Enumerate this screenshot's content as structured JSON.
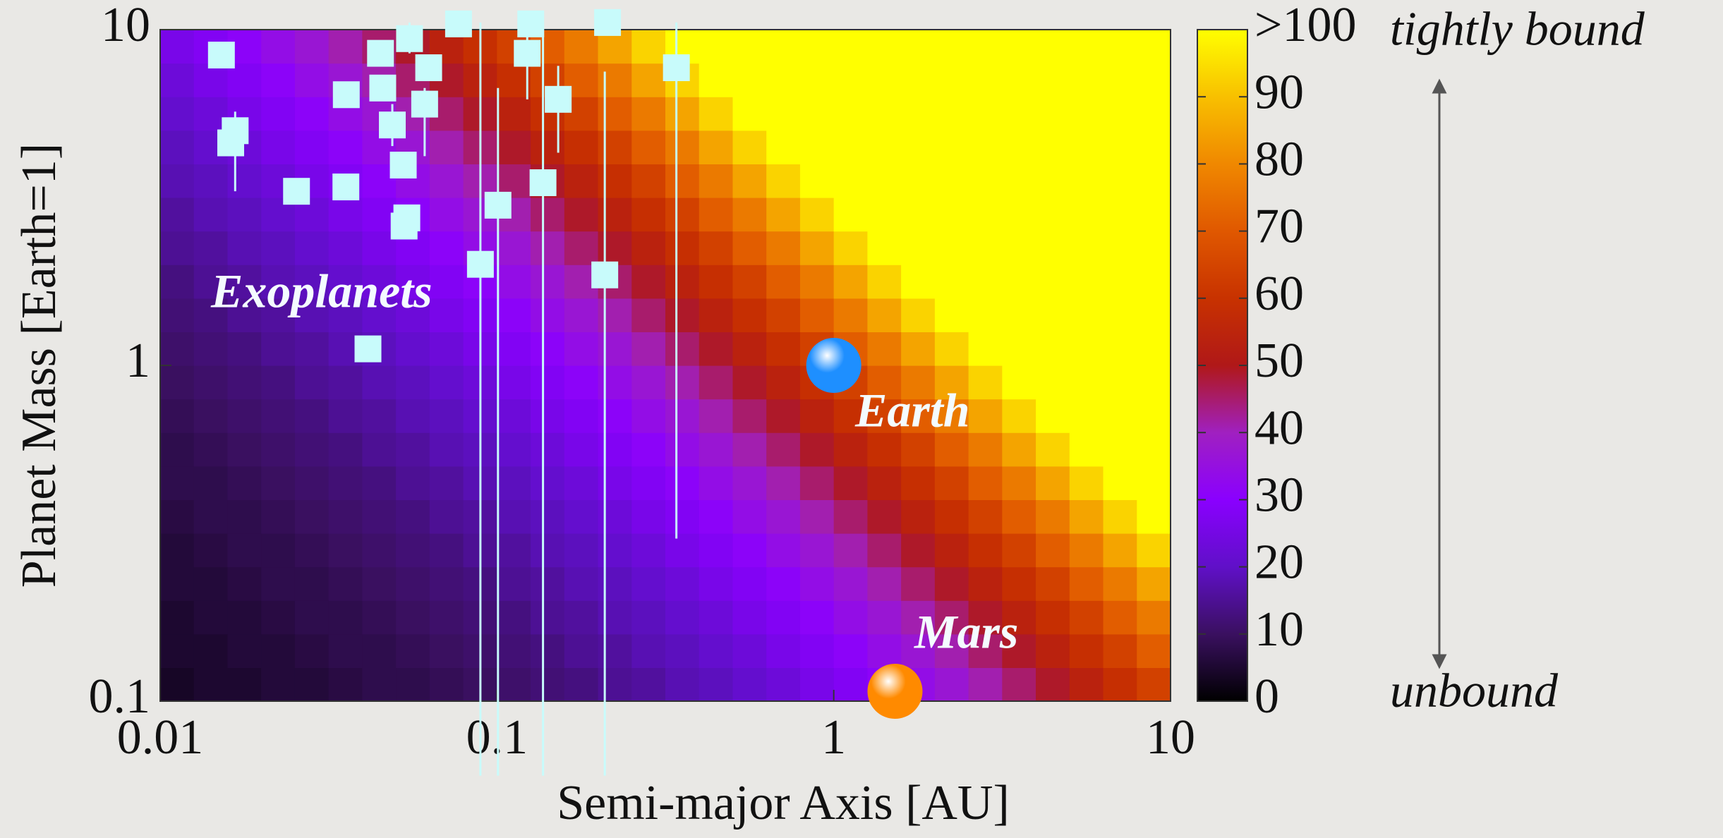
{
  "chart_data": {
    "type": "heatmap",
    "xlabel": "Semi-major Axis [AU]",
    "ylabel": "Planet Mass [Earth=1]",
    "xlim": [
      0.01,
      10
    ],
    "ylim": [
      0.1,
      10
    ],
    "log_x": true,
    "log_y": true,
    "xticks": [
      0.01,
      0.1,
      1,
      10
    ],
    "yticks": [
      0.1,
      1,
      10
    ],
    "colorscale": [
      {
        "value": 0,
        "color": "#000000"
      },
      {
        "value": 10,
        "color": "#3a1060"
      },
      {
        "value": 20,
        "color": "#6010c8"
      },
      {
        "value": 30,
        "color": "#8a00ff"
      },
      {
        "value": 40,
        "color": "#a020c0"
      },
      {
        "value": 50,
        "color": "#b01818"
      },
      {
        "value": 60,
        "color": "#c83200"
      },
      {
        "value": 70,
        "color": "#e05800"
      },
      {
        "value": 80,
        "color": "#f08800"
      },
      {
        "value": 90,
        "color": "#f8c000"
      },
      {
        "value": 100,
        "color": "#ffff00"
      }
    ],
    "colorbar": {
      "ylim": [
        0,
        100
      ],
      "yticks": [
        0,
        10,
        20,
        30,
        40,
        50,
        60,
        70,
        80,
        90,
        {
          "value": 100,
          "label": ">100"
        }
      ]
    },
    "z": [
      [
        4,
        5,
        5,
        6,
        6,
        7,
        8,
        8,
        9,
        10,
        11,
        12,
        13,
        15,
        16,
        18,
        19,
        21,
        23,
        26,
        28,
        31,
        34,
        37,
        41,
        45,
        49,
        54,
        59,
        64
      ],
      [
        5,
        5,
        6,
        6,
        7,
        8,
        8,
        9,
        10,
        11,
        12,
        13,
        15,
        16,
        18,
        19,
        21,
        23,
        26,
        28,
        31,
        34,
        37,
        41,
        45,
        49,
        54,
        59,
        64,
        71
      ],
      [
        5,
        6,
        6,
        7,
        8,
        8,
        9,
        10,
        11,
        12,
        13,
        15,
        16,
        18,
        19,
        21,
        23,
        26,
        28,
        31,
        34,
        37,
        41,
        45,
        49,
        54,
        59,
        64,
        71,
        77
      ],
      [
        6,
        6,
        7,
        8,
        8,
        9,
        10,
        11,
        12,
        13,
        15,
        16,
        18,
        19,
        21,
        23,
        26,
        28,
        31,
        34,
        37,
        41,
        45,
        49,
        54,
        59,
        64,
        71,
        77,
        85
      ],
      [
        6,
        7,
        8,
        8,
        9,
        10,
        11,
        12,
        13,
        15,
        16,
        18,
        19,
        21,
        23,
        26,
        28,
        31,
        34,
        37,
        41,
        45,
        49,
        54,
        59,
        64,
        71,
        77,
        85,
        93
      ],
      [
        7,
        8,
        8,
        9,
        10,
        11,
        12,
        13,
        15,
        16,
        18,
        19,
        21,
        23,
        26,
        28,
        31,
        34,
        37,
        41,
        45,
        49,
        54,
        59,
        64,
        71,
        77,
        85,
        93,
        100
      ],
      [
        8,
        8,
        9,
        10,
        11,
        12,
        13,
        15,
        16,
        18,
        19,
        21,
        23,
        26,
        28,
        31,
        34,
        37,
        41,
        45,
        49,
        54,
        59,
        64,
        71,
        77,
        85,
        93,
        100,
        100
      ],
      [
        8,
        9,
        10,
        11,
        12,
        13,
        15,
        16,
        18,
        19,
        21,
        23,
        26,
        28,
        31,
        34,
        37,
        41,
        45,
        49,
        54,
        59,
        64,
        71,
        77,
        85,
        93,
        100,
        100,
        100
      ],
      [
        9,
        10,
        11,
        12,
        13,
        15,
        16,
        18,
        19,
        21,
        23,
        26,
        28,
        31,
        34,
        37,
        41,
        45,
        49,
        54,
        59,
        64,
        71,
        77,
        85,
        93,
        100,
        100,
        100,
        100
      ],
      [
        10,
        11,
        12,
        13,
        15,
        16,
        18,
        19,
        21,
        23,
        26,
        28,
        31,
        34,
        37,
        41,
        45,
        49,
        54,
        59,
        64,
        71,
        77,
        85,
        93,
        100,
        100,
        100,
        100,
        100
      ],
      [
        11,
        12,
        13,
        15,
        16,
        18,
        19,
        21,
        23,
        26,
        28,
        31,
        34,
        37,
        41,
        45,
        49,
        54,
        59,
        64,
        71,
        77,
        85,
        93,
        100,
        100,
        100,
        100,
        100,
        100
      ],
      [
        12,
        13,
        15,
        16,
        18,
        19,
        21,
        23,
        26,
        28,
        31,
        34,
        37,
        41,
        45,
        49,
        54,
        59,
        64,
        71,
        77,
        85,
        93,
        100,
        100,
        100,
        100,
        100,
        100,
        100
      ],
      [
        13,
        15,
        16,
        18,
        19,
        21,
        23,
        26,
        28,
        31,
        34,
        37,
        41,
        45,
        49,
        54,
        59,
        64,
        71,
        77,
        85,
        93,
        100,
        100,
        100,
        100,
        100,
        100,
        100,
        100
      ],
      [
        15,
        16,
        18,
        19,
        21,
        23,
        26,
        28,
        31,
        34,
        37,
        41,
        45,
        49,
        54,
        59,
        64,
        71,
        77,
        85,
        93,
        100,
        100,
        100,
        100,
        100,
        100,
        100,
        100,
        100
      ],
      [
        16,
        18,
        19,
        21,
        23,
        26,
        28,
        31,
        34,
        37,
        41,
        45,
        49,
        54,
        59,
        64,
        71,
        77,
        85,
        93,
        100,
        100,
        100,
        100,
        100,
        100,
        100,
        100,
        100,
        100
      ],
      [
        18,
        19,
        21,
        23,
        26,
        28,
        31,
        34,
        37,
        41,
        45,
        49,
        54,
        59,
        64,
        71,
        77,
        85,
        93,
        100,
        100,
        100,
        100,
        100,
        100,
        100,
        100,
        100,
        100,
        100
      ],
      [
        19,
        21,
        23,
        26,
        28,
        31,
        34,
        37,
        41,
        45,
        49,
        54,
        59,
        64,
        71,
        77,
        85,
        93,
        100,
        100,
        100,
        100,
        100,
        100,
        100,
        100,
        100,
        100,
        100,
        100
      ],
      [
        21,
        23,
        26,
        28,
        31,
        34,
        37,
        41,
        45,
        49,
        54,
        59,
        64,
        71,
        77,
        85,
        93,
        100,
        100,
        100,
        100,
        100,
        100,
        100,
        100,
        100,
        100,
        100,
        100,
        100
      ],
      [
        23,
        26,
        28,
        31,
        34,
        37,
        41,
        45,
        49,
        54,
        59,
        64,
        71,
        77,
        85,
        93,
        100,
        100,
        100,
        100,
        100,
        100,
        100,
        100,
        100,
        100,
        100,
        100,
        100,
        100
      ],
      [
        26,
        28,
        31,
        34,
        37,
        41,
        45,
        49,
        54,
        59,
        64,
        71,
        77,
        85,
        93,
        100,
        100,
        100,
        100,
        100,
        100,
        100,
        100,
        100,
        100,
        100,
        100,
        100,
        100,
        100
      ]
    ],
    "series": [
      {
        "name": "Exoplanets",
        "color": "#c8fbfb",
        "x": [
          0.0152,
          0.0167,
          0.0162,
          0.0254,
          0.0356,
          0.0357,
          0.0451,
          0.0458,
          0.0489,
          0.0527,
          0.053,
          0.054,
          0.055,
          0.0627,
          0.061,
          0.0769,
          0.0414,
          0.0893,
          0.1007,
          0.123,
          0.126,
          0.137,
          0.152,
          0.209,
          0.213,
          0.341
        ],
        "values": [
          8.4,
          5.0,
          4.6,
          3.3,
          3.4,
          6.4,
          8.5,
          6.7,
          5.2,
          3.95,
          2.6,
          2.75,
          9.4,
          7.7,
          6.0,
          10.4,
          1.12,
          2.0,
          3.0,
          8.5,
          10.4,
          3.5,
          6.2,
          1.86,
          10.5,
          7.7
        ],
        "err_low": [
          null,
          3.3,
          null,
          null,
          null,
          null,
          null,
          null,
          4.5,
          null,
          null,
          null,
          8.5,
          null,
          4.2,
          null,
          null,
          0.06,
          0.06,
          6.2,
          null,
          0.06,
          4.3,
          0.06,
          null,
          0.305
        ],
        "err_high": [
          null,
          5.7,
          null,
          null,
          null,
          null,
          null,
          null,
          6.0,
          null,
          null,
          null,
          10.5,
          null,
          6.7,
          null,
          null,
          10.5,
          6.7,
          10.5,
          null,
          10.2,
          7.8,
          7.5,
          null,
          10.5
        ]
      },
      {
        "name": "Earth",
        "color": "#1e8fff",
        "x": [
          1
        ],
        "values": [
          1
        ]
      },
      {
        "name": "Mars",
        "color": "#ff8a00",
        "x": [
          1.52
        ],
        "values": [
          0.107
        ]
      }
    ],
    "annotations": {
      "top": "tightly bound",
      "bottom": "unbound"
    }
  }
}
